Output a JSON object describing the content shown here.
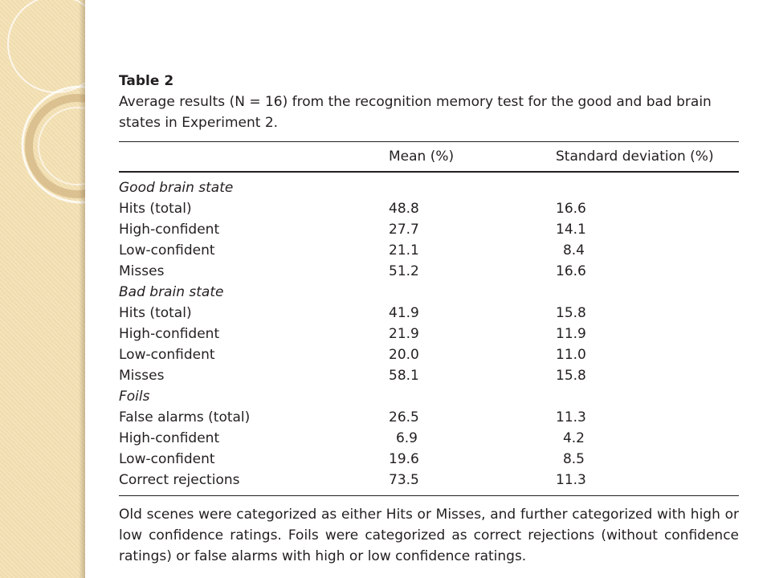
{
  "table": {
    "label": "Table 2",
    "caption": "Average results (N = 16) from the recognition memory test for the good and bad brain states in Experiment 2.",
    "columns": [
      "",
      "Mean (%)",
      "Standard deviation (%)"
    ],
    "rows": [
      {
        "label": "Good brain state",
        "mean": "",
        "sd": ""
      },
      {
        "label": "Hits (total)",
        "mean": "48.8",
        "sd": "16.6"
      },
      {
        "label": "High-confident",
        "mean": "27.7",
        "sd": "14.1"
      },
      {
        "label": "Low-confident",
        "mean": "21.1",
        "sd": "8.4"
      },
      {
        "label": "Misses",
        "mean": "51.2",
        "sd": "16.6"
      },
      {
        "label": "Bad brain state",
        "mean": "",
        "sd": ""
      },
      {
        "label": "Hits (total)",
        "mean": "41.9",
        "sd": "15.8"
      },
      {
        "label": "High-confident",
        "mean": "21.9",
        "sd": "11.9"
      },
      {
        "label": "Low-confident",
        "mean": "20.0",
        "sd": "11.0"
      },
      {
        "label": "Misses",
        "mean": "58.1",
        "sd": "15.8"
      },
      {
        "label": "Foils",
        "mean": "",
        "sd": ""
      },
      {
        "label": "False alarms (total)",
        "mean": "26.5",
        "sd": "11.3"
      },
      {
        "label": "High-confident",
        "mean": "6.9",
        "sd": "4.2"
      },
      {
        "label": "Low-confident",
        "mean": "19.6",
        "sd": "8.5"
      },
      {
        "label": "Correct rejections",
        "mean": "73.5",
        "sd": "11.3"
      }
    ],
    "footnote": "Old scenes were categorized as either Hits or Misses, and further categorized with high or low confidence ratings. Foils were categorized as correct rejections (without confidence ratings) or false alarms with high or low confidence ratings."
  }
}
